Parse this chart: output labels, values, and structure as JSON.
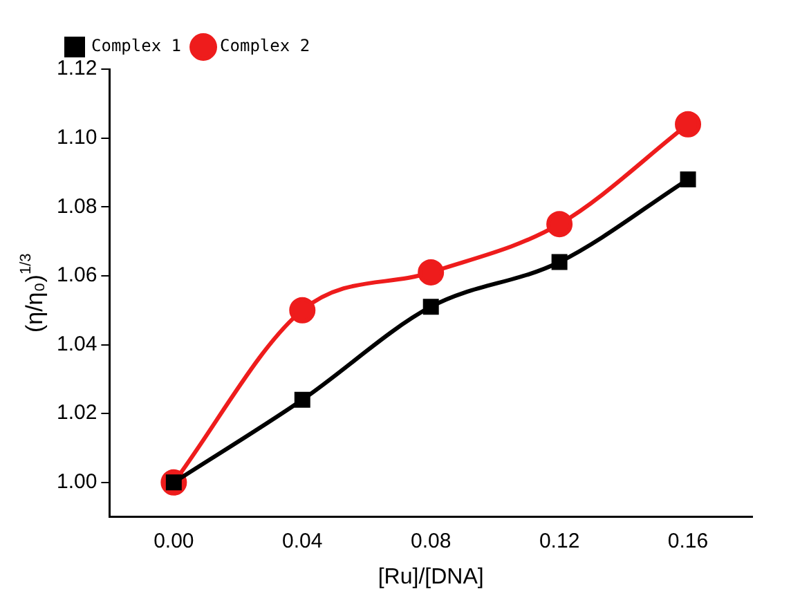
{
  "chart_data": {
    "type": "line",
    "xlabel": "[Ru]/[DNA]",
    "ylabel": "(η/η₀)$^{1/3}$",
    "x": [
      0,
      0.04,
      0.08,
      0.12,
      0.16
    ],
    "series": [
      {
        "name": "Complex 1",
        "color": "#000000",
        "values": [
          1.0,
          1.024,
          1.051,
          1.064,
          1.088
        ],
        "marker": "square"
      },
      {
        "name": "Complex 2",
        "color": "#ee1c1c",
        "values": [
          1.0,
          1.05,
          1.061,
          1.075,
          1.104
        ],
        "marker": "circle"
      }
    ],
    "xlim": [
      -0.02,
      0.18
    ],
    "xticks": [
      {
        "value": 0,
        "label": "0.00"
      },
      {
        "value": 0.04,
        "label": "0.04"
      },
      {
        "value": 0.08,
        "label": "0.08"
      },
      {
        "value": 0.12,
        "label": "0.12"
      },
      {
        "value": 0.16,
        "label": "0.16"
      }
    ],
    "ylim": [
      0.99,
      1.12
    ],
    "yticks": [
      {
        "value": 1,
        "label": "1.00"
      },
      {
        "value": 1.02,
        "label": "1.02"
      },
      {
        "value": 1.04,
        "label": "1.04"
      },
      {
        "value": 1.06,
        "label": "1.06"
      },
      {
        "value": 1.08,
        "label": "1.08"
      },
      {
        "value": 1.1,
        "label": "1.10"
      },
      {
        "value": 1.12,
        "label": "1.12"
      }
    ],
    "grid": false,
    "legend": "top left",
    "line_style": "solid"
  }
}
